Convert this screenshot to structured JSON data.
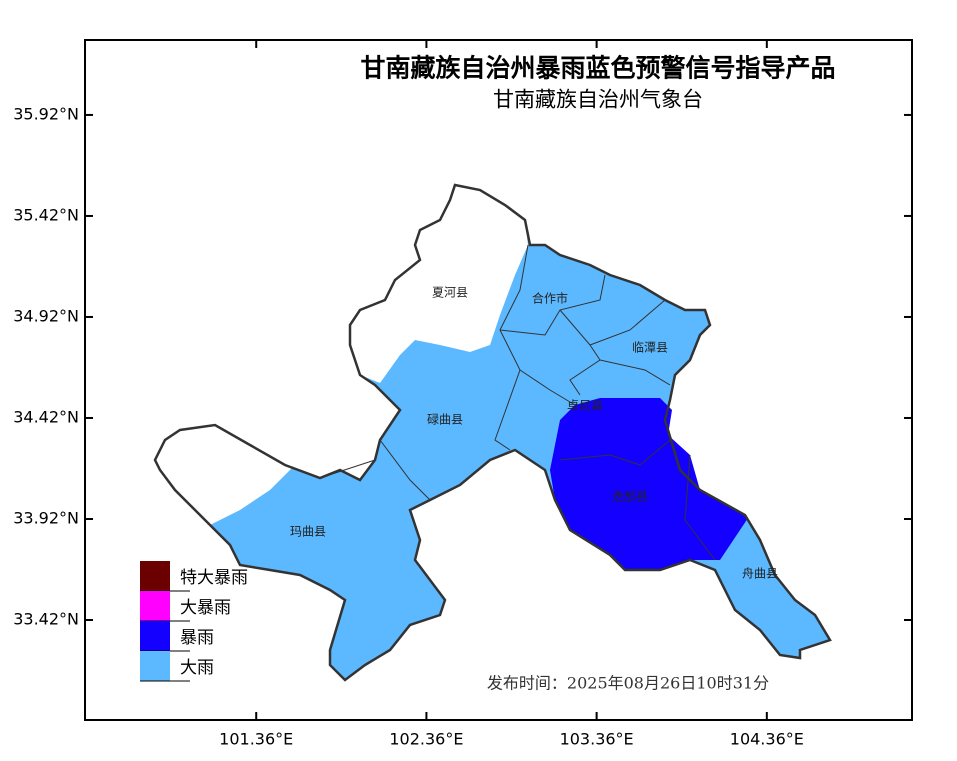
{
  "header": {
    "title": "甘南藏族自治州暴雨蓝色预警信号指导产品",
    "subtitle": "甘南藏族自治州气象台"
  },
  "map": {
    "xlim": [
      100.354,
      105.213
    ],
    "ylim": [
      32.925,
      36.291
    ],
    "xticks": [
      {
        "value": 101.36,
        "label": "101.36°E"
      },
      {
        "value": 102.36,
        "label": "102.36°E"
      },
      {
        "value": 103.36,
        "label": "103.36°E"
      },
      {
        "value": 104.36,
        "label": "104.36°E"
      }
    ],
    "yticks": [
      {
        "value": 35.92,
        "label": "35.92°N"
      },
      {
        "value": 35.42,
        "label": "35.42°N"
      },
      {
        "value": 34.92,
        "label": "34.92°N"
      },
      {
        "value": 34.42,
        "label": "34.42°N"
      },
      {
        "value": 33.92,
        "label": "33.92°N"
      },
      {
        "value": 33.42,
        "label": "33.42°N"
      }
    ],
    "counties": [
      "夏河县",
      "合作市",
      "临潭县",
      "卓尼县",
      "碌曲县",
      "迭部县",
      "玛曲县",
      "舟曲县"
    ]
  },
  "legend": {
    "items": [
      {
        "name": "特大暴雨",
        "color": "#6b0000"
      },
      {
        "name": "大暴雨",
        "color": "#ff00ff"
      },
      {
        "name": "暴雨",
        "color": "#1400ff"
      },
      {
        "name": "大雨",
        "color": "#5cb8ff"
      }
    ]
  },
  "issue_time": "发布时间：2025年08月26日10时31分"
}
